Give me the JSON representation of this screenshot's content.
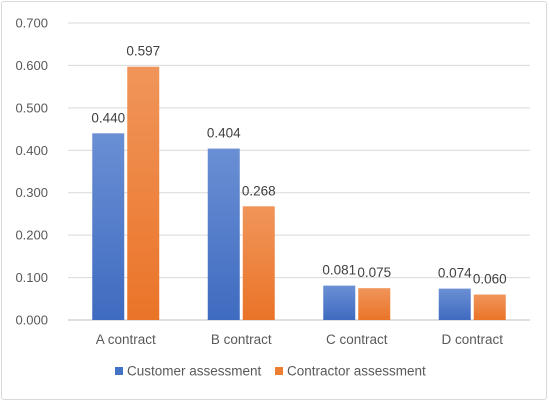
{
  "chart_data": {
    "type": "bar",
    "categories": [
      "A contract",
      "B contract",
      "C contract",
      "D contract"
    ],
    "series": [
      {
        "name": "Customer assessment",
        "values": [
          0.44,
          0.404,
          0.081,
          0.074
        ],
        "labels": [
          "0.440",
          "0.404",
          "0.081",
          "0.074"
        ],
        "color": "#4472c4"
      },
      {
        "name": "Contractor assessment",
        "values": [
          0.597,
          0.268,
          0.075,
          0.06
        ],
        "labels": [
          "0.597",
          "0.268",
          "0.075",
          "0.060"
        ],
        "color": "#ed7d31"
      }
    ],
    "yticks": [
      "0.000",
      "0.100",
      "0.200",
      "0.300",
      "0.400",
      "0.500",
      "0.600",
      "0.700"
    ],
    "ylim": [
      0,
      0.7
    ],
    "grid": true,
    "legend_position": "bottom",
    "title": "",
    "xlabel": "",
    "ylabel": ""
  }
}
